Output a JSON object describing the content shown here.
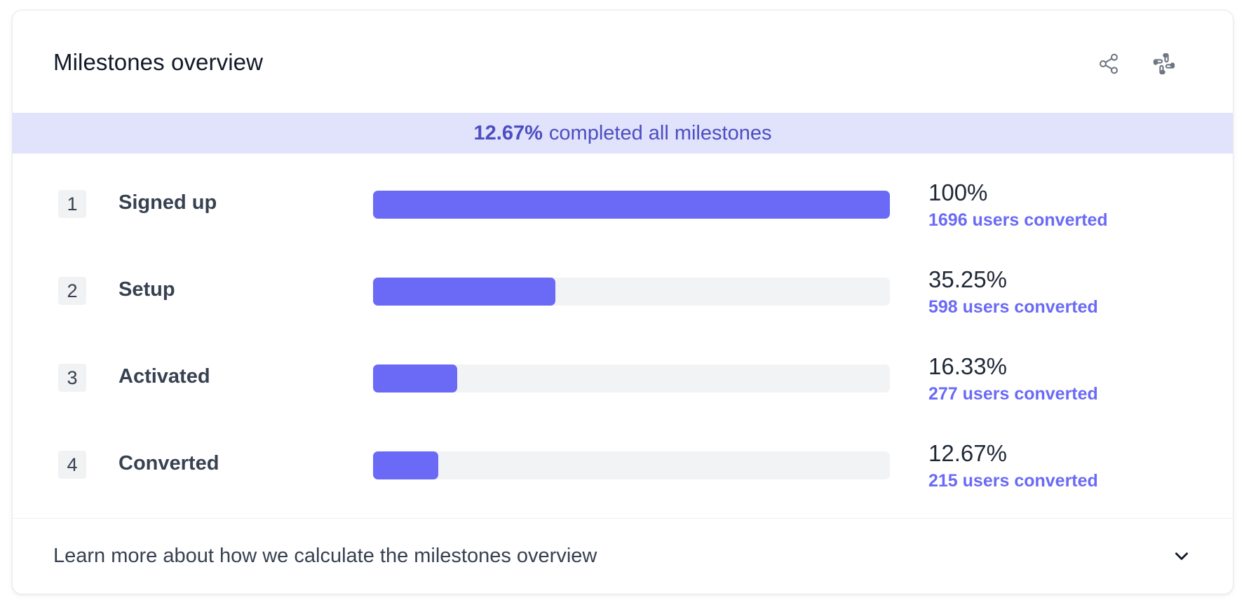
{
  "header": {
    "title": "Milestones overview",
    "share_icon": "share-icon",
    "slack_icon": "slack-icon"
  },
  "banner": {
    "percent": "12.67%",
    "text": "completed all milestones"
  },
  "milestones": [
    {
      "number": "1",
      "label": "Signed up",
      "fraction": 1.0,
      "percent": "100%",
      "converted": "1696 users converted"
    },
    {
      "number": "2",
      "label": "Setup",
      "fraction": 0.3525,
      "percent": "35.25%",
      "converted": "598 users converted"
    },
    {
      "number": "3",
      "label": "Activated",
      "fraction": 0.1633,
      "percent": "16.33%",
      "converted": "277 users converted"
    },
    {
      "number": "4",
      "label": "Converted",
      "fraction": 0.1267,
      "percent": "12.67%",
      "converted": "215 users converted"
    }
  ],
  "footer": {
    "text": "Learn more about how we calculate the milestones overview",
    "chevron_icon": "chevron-down-icon"
  },
  "colors": {
    "accent": "#6a6af6",
    "banner_bg": "#e1e2fc",
    "banner_text": "#4b4ec1",
    "track": "#f2f3f5"
  }
}
